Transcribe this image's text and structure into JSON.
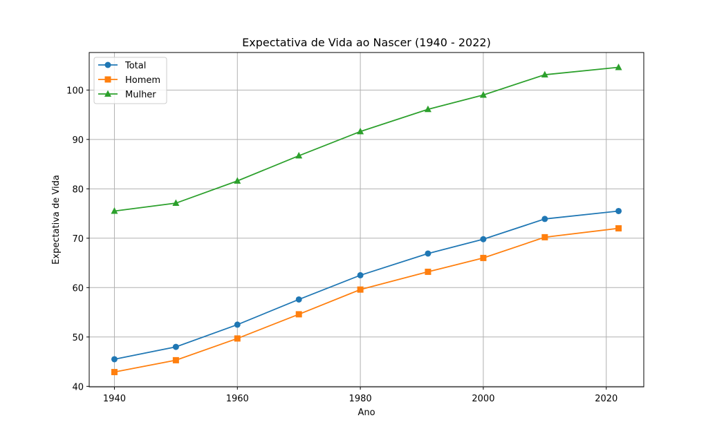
{
  "chart_data": {
    "type": "line",
    "title": "Expectativa de Vida ao Nascer (1940 - 2022)",
    "xlabel": "Ano",
    "ylabel": "Expectativa de Vida",
    "xlim": [
      1935.9,
      2026.1
    ],
    "ylim": [
      39.9,
      107.6
    ],
    "xticks": [
      1940,
      1960,
      1980,
      2000,
      2020
    ],
    "yticks": [
      40,
      50,
      60,
      70,
      80,
      90,
      100
    ],
    "grid": true,
    "legend_position": "top-left",
    "x": [
      1940,
      1950,
      1960,
      1970,
      1980,
      1991,
      2000,
      2010,
      2022
    ],
    "series": [
      {
        "name": "Total",
        "color": "#1f77b4",
        "marker": "circle",
        "values": [
          45.5,
          48.0,
          52.5,
          57.6,
          62.5,
          66.9,
          69.8,
          73.9,
          75.5
        ]
      },
      {
        "name": "Homem",
        "color": "#ff7f0e",
        "marker": "square",
        "values": [
          42.9,
          45.3,
          49.7,
          54.6,
          59.6,
          63.2,
          66.0,
          70.2,
          72.0
        ]
      },
      {
        "name": "Mulher",
        "color": "#2ca02c",
        "marker": "triangle",
        "values": [
          75.5,
          77.1,
          81.6,
          86.7,
          91.6,
          96.1,
          99.0,
          103.1,
          104.6
        ]
      }
    ]
  }
}
